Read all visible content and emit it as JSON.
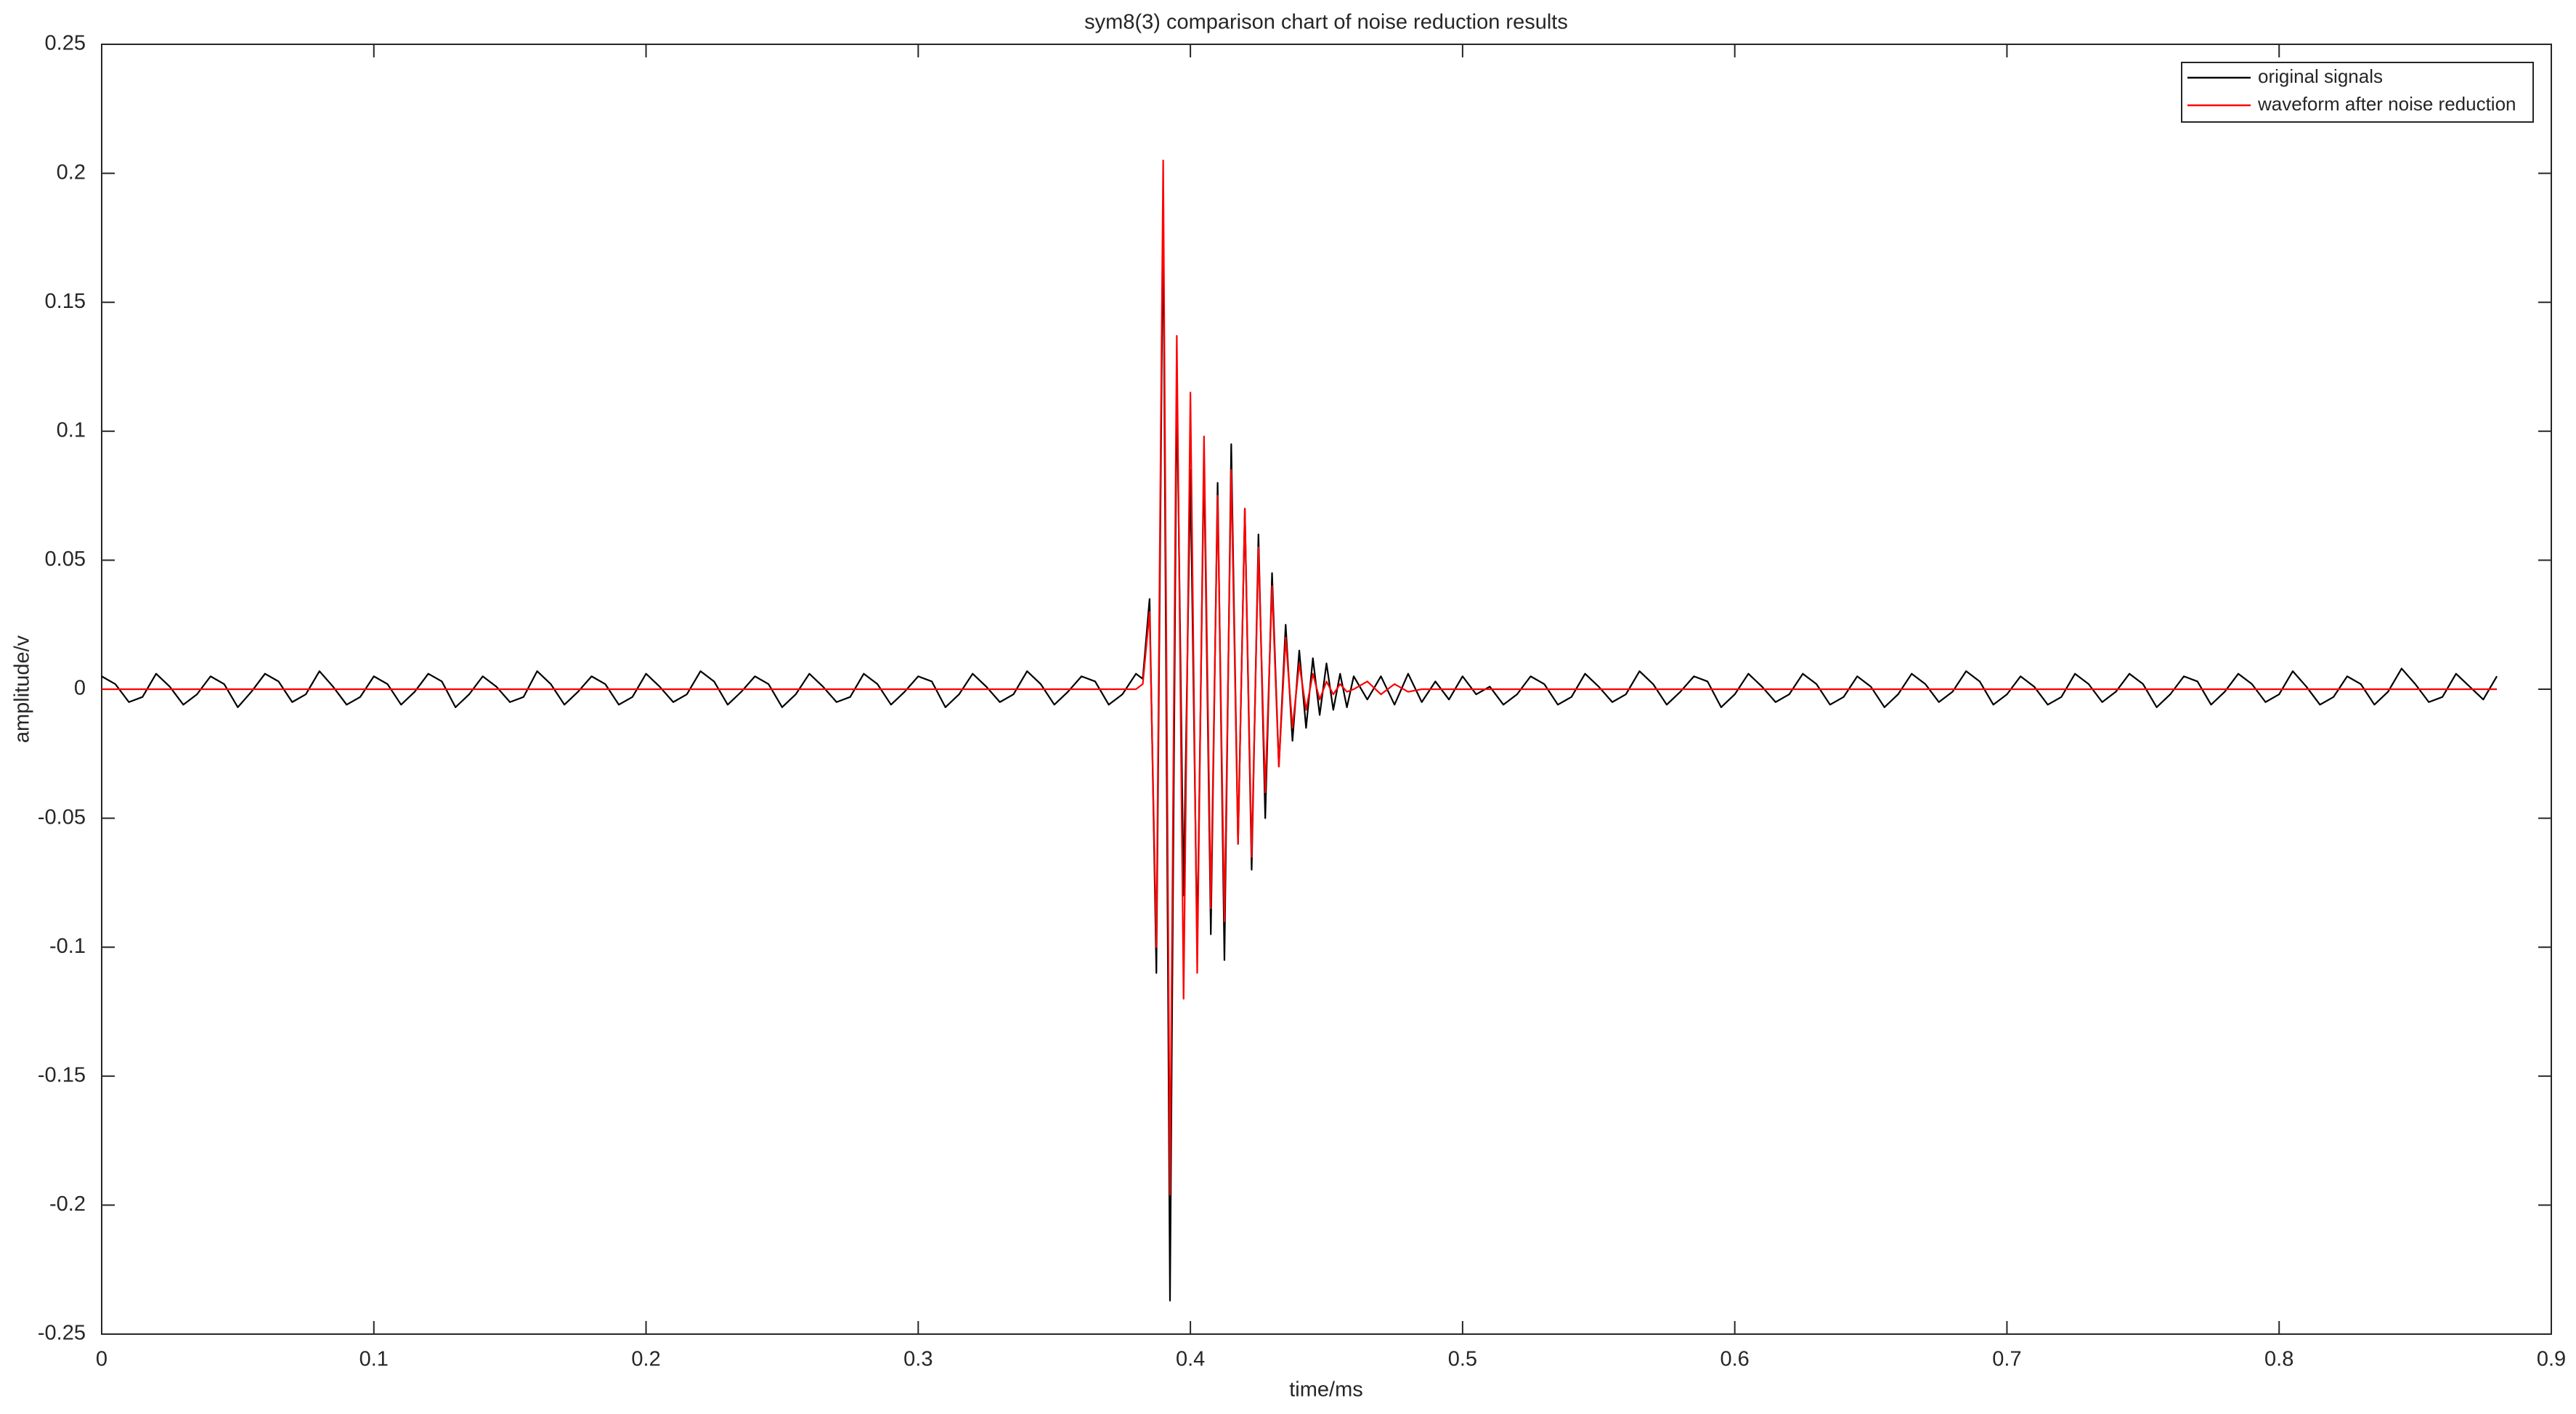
{
  "chart_data": {
    "type": "line",
    "title": "sym8(3) comparison chart of noise reduction results",
    "xlabel": "time/ms",
    "ylabel": "amplitude/v",
    "xlim": [
      0,
      0.9
    ],
    "ylim": [
      -0.25,
      0.25
    ],
    "xticks": [
      0,
      0.1,
      0.2,
      0.3,
      0.4,
      0.5,
      0.6,
      0.7,
      0.8,
      0.9
    ],
    "yticks": [
      -0.25,
      -0.2,
      -0.15,
      -0.1,
      -0.05,
      0,
      0.05,
      0.1,
      0.15,
      0.2,
      0.25
    ],
    "grid": false,
    "legend": "upper right",
    "x": [
      0,
      0.005,
      0.01,
      0.015,
      0.02,
      0.025,
      0.03,
      0.035,
      0.04,
      0.045,
      0.05,
      0.055,
      0.06,
      0.065,
      0.07,
      0.075,
      0.08,
      0.085,
      0.09,
      0.095,
      0.1,
      0.105,
      0.11,
      0.115,
      0.12,
      0.125,
      0.13,
      0.135,
      0.14,
      0.145,
      0.15,
      0.155,
      0.16,
      0.165,
      0.17,
      0.175,
      0.18,
      0.185,
      0.19,
      0.195,
      0.2,
      0.205,
      0.21,
      0.215,
      0.22,
      0.225,
      0.23,
      0.235,
      0.24,
      0.245,
      0.25,
      0.255,
      0.26,
      0.265,
      0.27,
      0.275,
      0.28,
      0.285,
      0.29,
      0.295,
      0.3,
      0.305,
      0.31,
      0.315,
      0.32,
      0.325,
      0.33,
      0.335,
      0.34,
      0.345,
      0.35,
      0.355,
      0.36,
      0.365,
      0.37,
      0.375,
      0.38,
      0.3825,
      0.385,
      0.3875,
      0.39,
      0.3925,
      0.395,
      0.3975,
      0.4,
      0.4025,
      0.405,
      0.4075,
      0.41,
      0.4125,
      0.415,
      0.4175,
      0.42,
      0.4225,
      0.425,
      0.4275,
      0.43,
      0.4325,
      0.435,
      0.4375,
      0.44,
      0.4425,
      0.445,
      0.4475,
      0.45,
      0.4525,
      0.455,
      0.4575,
      0.46,
      0.465,
      0.47,
      0.475,
      0.48,
      0.485,
      0.49,
      0.495,
      0.5,
      0.505,
      0.51,
      0.515,
      0.52,
      0.525,
      0.53,
      0.535,
      0.54,
      0.545,
      0.55,
      0.555,
      0.56,
      0.565,
      0.57,
      0.575,
      0.58,
      0.585,
      0.59,
      0.595,
      0.6,
      0.605,
      0.61,
      0.615,
      0.62,
      0.625,
      0.63,
      0.635,
      0.64,
      0.645,
      0.65,
      0.655,
      0.66,
      0.665,
      0.67,
      0.675,
      0.68,
      0.685,
      0.69,
      0.695,
      0.7,
      0.705,
      0.71,
      0.715,
      0.72,
      0.725,
      0.73,
      0.735,
      0.74,
      0.745,
      0.75,
      0.755,
      0.76,
      0.765,
      0.77,
      0.775,
      0.78,
      0.785,
      0.79,
      0.795,
      0.8,
      0.805,
      0.81,
      0.815,
      0.82,
      0.825,
      0.83,
      0.835,
      0.84,
      0.845,
      0.85,
      0.855,
      0.86,
      0.865,
      0.87,
      0.875,
      0.88
    ],
    "series": [
      {
        "name": "original signals",
        "color": "#000000",
        "values": [
          0.005,
          0.002,
          -0.005,
          -0.003,
          0.006,
          0.001,
          -0.006,
          -0.002,
          0.005,
          0.002,
          -0.007,
          -0.001,
          0.006,
          0.003,
          -0.005,
          -0.002,
          0.007,
          0.001,
          -0.006,
          -0.003,
          0.005,
          0.002,
          -0.006,
          -0.001,
          0.006,
          0.003,
          -0.007,
          -0.002,
          0.005,
          0.001,
          -0.005,
          -0.003,
          0.007,
          0.002,
          -0.006,
          -0.001,
          0.005,
          0.002,
          -0.006,
          -0.003,
          0.006,
          0.001,
          -0.005,
          -0.002,
          0.007,
          0.003,
          -0.006,
          -0.001,
          0.005,
          0.002,
          -0.007,
          -0.002,
          0.006,
          0.001,
          -0.005,
          -0.003,
          0.006,
          0.002,
          -0.006,
          -0.001,
          0.005,
          0.003,
          -0.007,
          -0.002,
          0.006,
          0.001,
          -0.005,
          -0.002,
          0.007,
          0.002,
          -0.006,
          -0.001,
          0.005,
          0.003,
          -0.006,
          -0.002,
          0.006,
          0.004,
          0.035,
          -0.11,
          0.187,
          -0.237,
          0.12,
          -0.08,
          0.085,
          -0.1,
          0.09,
          -0.095,
          0.08,
          -0.105,
          0.095,
          -0.06,
          0.07,
          -0.07,
          0.06,
          -0.05,
          0.045,
          -0.03,
          0.025,
          -0.02,
          0.015,
          -0.015,
          0.012,
          -0.01,
          0.01,
          -0.008,
          0.006,
          -0.007,
          0.005,
          -0.004,
          0.005,
          -0.006,
          0.006,
          -0.005,
          0.003,
          -0.004,
          0.005,
          -0.002,
          0.001,
          -0.006,
          -0.002,
          0.005,
          0.002,
          -0.006,
          -0.003,
          0.006,
          0.001,
          -0.005,
          -0.002,
          0.007,
          0.002,
          -0.006,
          -0.001,
          0.005,
          0.003,
          -0.007,
          -0.002,
          0.006,
          0.001,
          -0.005,
          -0.002,
          0.006,
          0.002,
          -0.006,
          -0.003,
          0.005,
          0.001,
          -0.007,
          -0.002,
          0.006,
          0.002,
          -0.005,
          -0.001,
          0.007,
          0.003,
          -0.006,
          -0.002,
          0.005,
          0.001,
          -0.006,
          -0.003,
          0.006,
          0.002,
          -0.005,
          -0.001,
          0.006,
          0.002,
          -0.007,
          -0.002,
          0.005,
          0.003,
          -0.006,
          -0.001,
          0.006,
          0.002,
          -0.005,
          -0.002,
          0.007,
          0.001,
          -0.006,
          -0.003,
          0.005,
          0.002,
          -0.006,
          -0.001,
          0.008,
          0.002,
          -0.005,
          -0.003,
          0.006,
          0.001,
          -0.004,
          0.005
        ]
      },
      {
        "name": "waveform after noise reduction",
        "color": "#ff0000",
        "values": [
          0,
          0,
          0,
          0,
          0,
          0,
          0,
          0,
          0,
          0,
          0,
          0,
          0,
          0,
          0,
          0,
          0,
          0,
          0,
          0,
          0,
          0,
          0,
          0,
          0,
          0,
          0,
          0,
          0,
          0,
          0,
          0,
          0,
          0,
          0,
          0,
          0,
          0,
          0,
          0,
          0,
          0,
          0,
          0,
          0,
          0,
          0,
          0,
          0,
          0,
          0,
          0,
          0,
          0,
          0,
          0,
          0,
          0,
          0,
          0,
          0,
          0,
          0,
          0,
          0,
          0,
          0,
          0,
          0,
          0,
          0,
          0,
          0,
          0,
          0,
          0,
          0,
          0.002,
          0.03,
          -0.1,
          0.205,
          -0.196,
          0.137,
          -0.12,
          0.115,
          -0.11,
          0.098,
          -0.085,
          0.075,
          -0.09,
          0.085,
          -0.06,
          0.07,
          -0.065,
          0.055,
          -0.04,
          0.04,
          -0.03,
          0.02,
          -0.015,
          0.01,
          -0.008,
          0.006,
          -0.004,
          0.003,
          -0.002,
          0.002,
          -0.001,
          0,
          0.003,
          -0.002,
          0.002,
          -0.001,
          0,
          0,
          0,
          0,
          0,
          0,
          0,
          0,
          0,
          0,
          0,
          0,
          0,
          0,
          0,
          0,
          0,
          0,
          0,
          0,
          0,
          0,
          0,
          0,
          0,
          0,
          0,
          0,
          0,
          0,
          0,
          0,
          0,
          0,
          0,
          0,
          0,
          0,
          0,
          0,
          0,
          0,
          0,
          0,
          0,
          0,
          0,
          0,
          0,
          0,
          0,
          0,
          0,
          0,
          0,
          0,
          0,
          0,
          0,
          0,
          0,
          0,
          0,
          0,
          0,
          0,
          0,
          0,
          0,
          0,
          0,
          0,
          0,
          0,
          0,
          0,
          0,
          0,
          0,
          0
        ]
      }
    ]
  }
}
